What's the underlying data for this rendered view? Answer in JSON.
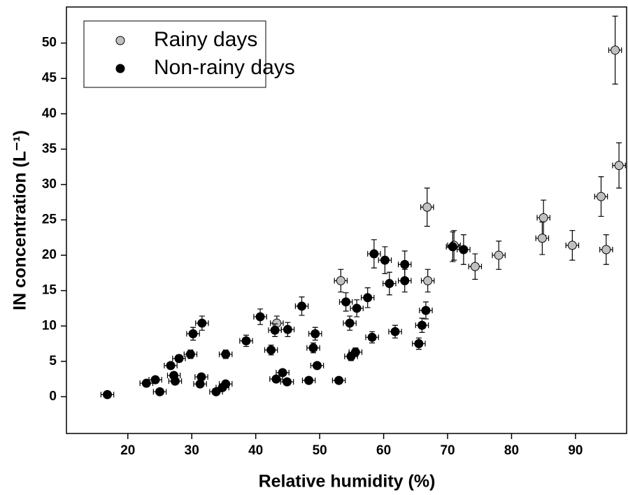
{
  "chart_data": {
    "type": "scatter",
    "x_label": "Relative humidity (%)",
    "y_label": "IN concentration (L⁻¹)",
    "xlim": [
      10.4,
      98.1
    ],
    "ylim": [
      -5.2,
      55.1
    ],
    "xticks": [
      20,
      30,
      40,
      50,
      60,
      70,
      80,
      90
    ],
    "yticks": [
      0,
      5,
      10,
      15,
      20,
      25,
      30,
      35,
      40,
      45,
      50
    ],
    "legend": "upper left",
    "series": [
      {
        "name": "Rainy days",
        "color": "#c0c0c0",
        "x_error": 1,
        "x": [
          96.2,
          96.8,
          94,
          85,
          84.8,
          89.5,
          94.8,
          78,
          74.3,
          71,
          66.8,
          66.9,
          53.3,
          43.3
        ],
        "values": [
          49,
          32.7,
          28.3,
          25.3,
          22.4,
          21.4,
          20.8,
          20,
          18.4,
          21.4,
          26.8,
          16.4,
          16.4,
          10.4
        ],
        "y_err": [
          4.8,
          3.2,
          2.8,
          2.5,
          2.3,
          2.1,
          2.1,
          2,
          1.8,
          2.1,
          2.7,
          1.6,
          1.6,
          1
        ]
      },
      {
        "name": "Non-rainy days",
        "color": "#000000",
        "x_error": 1,
        "x": [
          16.8,
          22.9,
          24.3,
          25,
          26.7,
          27.2,
          27.4,
          28,
          29.8,
          30.2,
          31.3,
          31.5,
          31.6,
          33.8,
          34.8,
          35.3,
          35.3,
          38.5,
          40.7,
          42.4,
          43,
          43.2,
          44.2,
          44.9,
          45,
          47.2,
          48.3,
          49,
          49.3,
          49.6,
          53,
          54.1,
          54.7,
          54.9,
          55.6,
          55.8,
          57.5,
          58.2,
          58.5,
          60.2,
          60.9,
          61.8,
          63.3,
          63.3,
          65.5,
          66,
          66.6,
          72.5,
          70.8
        ],
        "values": [
          0.3,
          1.9,
          2.4,
          0.7,
          4.4,
          3,
          2.2,
          5.4,
          6,
          8.9,
          1.8,
          2.8,
          10.4,
          0.7,
          1.3,
          1.8,
          6,
          7.9,
          11.3,
          6.6,
          9.4,
          2.5,
          3.4,
          2.1,
          9.5,
          12.8,
          2.3,
          6.9,
          8.9,
          4.4,
          2.3,
          13.4,
          10.4,
          5.7,
          6.3,
          12.5,
          14,
          8.4,
          20.2,
          19.3,
          16,
          9.2,
          18.7,
          16.4,
          7.5,
          10.1,
          12.2,
          20.8,
          21.2
        ],
        "y_err": [
          0.3,
          0.3,
          0.3,
          0.3,
          0.4,
          0.3,
          0.3,
          0.5,
          0.6,
          0.9,
          0.3,
          0.3,
          1,
          0.3,
          0.3,
          0.3,
          0.6,
          0.8,
          1.1,
          0.7,
          0.9,
          0.3,
          0.3,
          0.3,
          1,
          1.3,
          0.3,
          0.7,
          0.9,
          0.4,
          0.3,
          1.3,
          1,
          0.6,
          0.6,
          1.2,
          1.4,
          0.8,
          2,
          1.9,
          1.6,
          0.9,
          1.9,
          1.6,
          0.8,
          1,
          1.2,
          2.1,
          2.1
        ]
      }
    ]
  }
}
